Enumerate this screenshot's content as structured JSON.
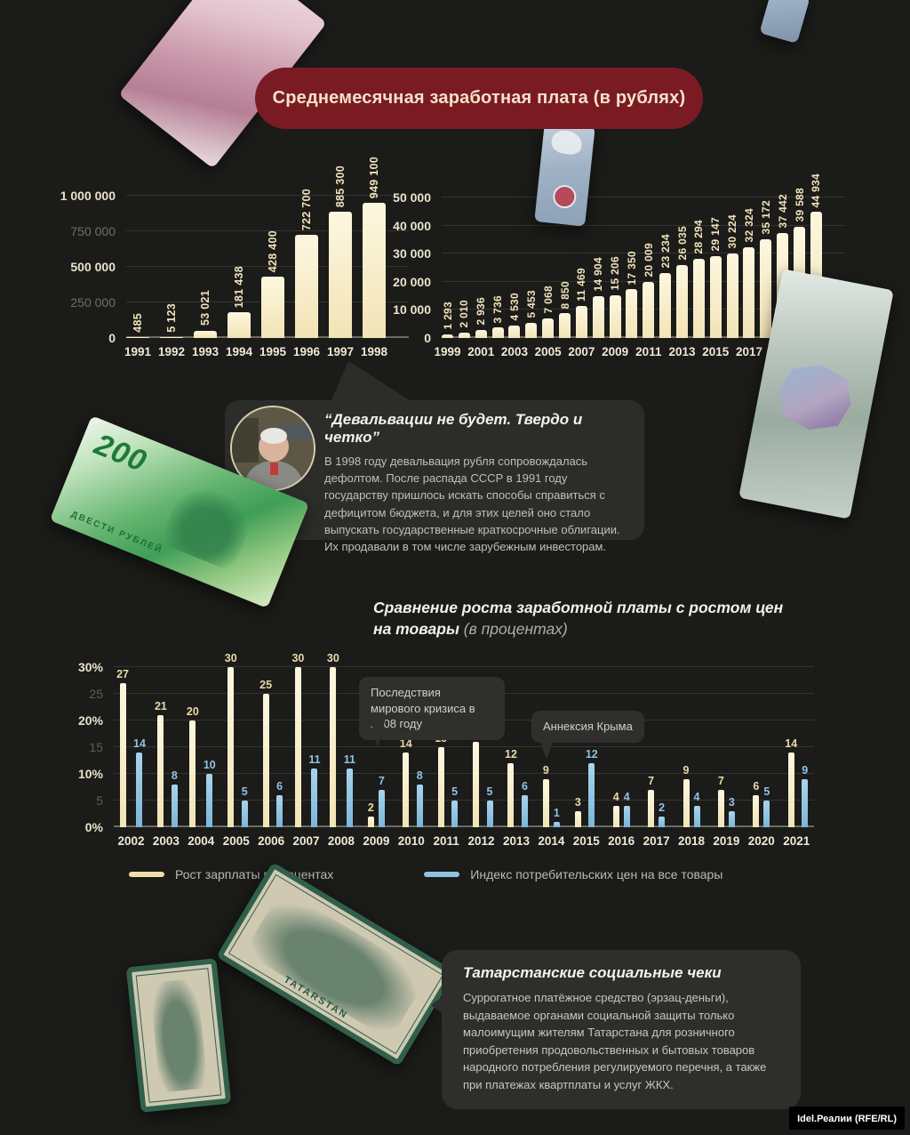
{
  "banner": {
    "title": "Среднемесячная заработная плата (в рублях)"
  },
  "quote": {
    "title": "“Девальвации не будет. Твердо и четко”",
    "body": "В 1998 году девальвация рубля сопровождалась дефолтом. После распада СССР в 1991 году государству пришлось искать способы справиться с дефицитом бюджета, и для этих целей оно стало выпускать государственные краткосрочные облигации. Их продавали в том числе зарубежным инвесторам."
  },
  "comparison": {
    "title_bold": "Сравнение роста заработной платы с ростом цен на товары",
    "title_note": "(в процентах)"
  },
  "annotations": {
    "crisis": "Последствия мирового кризиса в 2008 году",
    "crimea": "Аннексия Крыма"
  },
  "legend": {
    "salary": "Рост зарплаты в процентах",
    "cpi": "Индекс потребительских цен на все товары"
  },
  "social": {
    "title": "Татарстанские социальные чеки",
    "body": "Суррогатное платёжное средство (эрзац-деньги), выдаваемое органами социальной защиты только малоимущим жителям Татарстана для розничного приобретения продовольственных и бытовых товаров народного потребления регулируемого перечня, а также при платежах квартплаты и услуг ЖКХ."
  },
  "watermark": "Idel.Реалии (RFE/RL)",
  "decorations": {
    "note200_value": "200",
    "note200_word": "ДВЕСТИ РУБЛЕЙ",
    "check_word": "TATARSTAN"
  },
  "colors": {
    "salary_bar": "#f7edc9",
    "cpi_bar": "#8ec4e2",
    "banner_red": "#7a1b23",
    "background": "#1b1b19"
  },
  "chart_data": [
    {
      "type": "bar",
      "title": "Среднемесячная заработная плата (в рублях), 1991–1998",
      "categories": [
        "1991",
        "1992",
        "1993",
        "1994",
        "1995",
        "1996",
        "1997",
        "1998"
      ],
      "values": [
        485,
        5123,
        53021,
        181438,
        428400,
        722700,
        885300,
        949100
      ],
      "value_labels": [
        "485",
        "5 123",
        "53 021",
        "181 438",
        "428 400",
        "722 700",
        "885 300",
        "949 100"
      ],
      "ylim": [
        0,
        1000000
      ],
      "yticks": [
        {
          "label": "0",
          "v": 0,
          "bright": true
        },
        {
          "label": "250 000",
          "v": 250000,
          "bright": false
        },
        {
          "label": "500 000",
          "v": 500000,
          "bright": true
        },
        {
          "label": "750 000",
          "v": 750000,
          "bright": false
        },
        {
          "label": "1 000 000",
          "v": 1000000,
          "bright": true
        }
      ],
      "xlabel_every": 1,
      "grid": true,
      "bar_color": "#f7edc9"
    },
    {
      "type": "bar",
      "title": "Среднемесячная заработная плата (в рублях), 1999–2021",
      "categories": [
        "1999",
        "2000",
        "2001",
        "2002",
        "2003",
        "2004",
        "2005",
        "2006",
        "2007",
        "2008",
        "2009",
        "2010",
        "2011",
        "2012",
        "2013",
        "2014",
        "2015",
        "2016",
        "2017",
        "2018",
        "2019",
        "2020",
        "2021"
      ],
      "values": [
        1293,
        2010,
        2936,
        3736,
        4530,
        5453,
        7068,
        8850,
        11469,
        14904,
        15206,
        17350,
        20009,
        23234,
        26035,
        28294,
        29147,
        30224,
        32324,
        35172,
        37442,
        39588,
        44934
      ],
      "value_labels": [
        "1 293",
        "2 010",
        "2 936",
        "3 736",
        "4 530",
        "5 453",
        "7 068",
        "8 850",
        "11 469",
        "14 904",
        "15 206",
        "17 350",
        "20 009",
        "23 234",
        "26 035",
        "28 294",
        "29 147",
        "30 224",
        "32 324",
        "35 172",
        "37 442",
        "39 588",
        "44 934"
      ],
      "ylim": [
        0,
        50000
      ],
      "yticks": [
        {
          "label": "0",
          "v": 0,
          "bright": true
        },
        {
          "label": "10 000",
          "v": 10000,
          "bright": true
        },
        {
          "label": "20 000",
          "v": 20000,
          "bright": true
        },
        {
          "label": "30 000",
          "v": 30000,
          "bright": true
        },
        {
          "label": "40 000",
          "v": 40000,
          "bright": true
        },
        {
          "label": "50 000",
          "v": 50000,
          "bright": true
        }
      ],
      "xlabel_every": 2,
      "grid": true,
      "bar_color": "#f7edc9"
    },
    {
      "type": "bar",
      "title": "Сравнение роста заработной платы с ростом цен на товары (в процентах)",
      "categories": [
        "2002",
        "2003",
        "2004",
        "2005",
        "2006",
        "2007",
        "2008",
        "2009",
        "2010",
        "2011",
        "2012",
        "2013",
        "2014",
        "2015",
        "2016",
        "2017",
        "2018",
        "2019",
        "2020",
        "2021"
      ],
      "series": [
        {
          "name": "Рост зарплаты в процентах",
          "color": "#f7edc9",
          "values": [
            27,
            21,
            20,
            30,
            25,
            30,
            30,
            2,
            14,
            15,
            16,
            12,
            9,
            3,
            4,
            7,
            9,
            7,
            6,
            14
          ]
        },
        {
          "name": "Индекс потребительских цен на все товары",
          "color": "#8ec4e2",
          "values": [
            14,
            8,
            10,
            5,
            6,
            11,
            11,
            7,
            8,
            5,
            5,
            6,
            1,
            12,
            4,
            2,
            4,
            3,
            5,
            9
          ]
        }
      ],
      "ylim": [
        0,
        30
      ],
      "yticks": [
        {
          "label": "0%",
          "v": 0,
          "bright": true
        },
        {
          "label": "5",
          "v": 5,
          "bright": false
        },
        {
          "label": "10%",
          "v": 10,
          "bright": true
        },
        {
          "label": "15",
          "v": 15,
          "bright": false
        },
        {
          "label": "20%",
          "v": 20,
          "bright": true
        },
        {
          "label": "25",
          "v": 25,
          "bright": false
        },
        {
          "label": "30%",
          "v": 30,
          "bright": true
        }
      ],
      "xlabel_every": 1,
      "grid": true,
      "legend_position": "bottom",
      "annotations": [
        "Последствия мирового кризиса в 2008 году",
        "Аннексия Крыма"
      ]
    }
  ]
}
